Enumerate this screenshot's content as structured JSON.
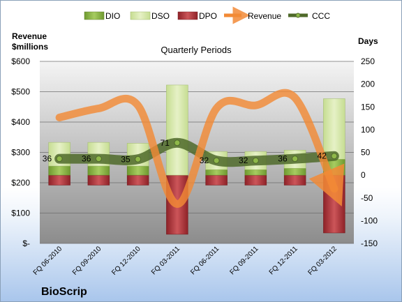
{
  "chart_data": {
    "type": "bar",
    "title": "Quarterly Periods",
    "company": "BioScrip",
    "left_axis": {
      "title_lines": [
        "Revenue",
        "$millions"
      ],
      "ticks": [
        "$-",
        "$100",
        "$200",
        "$300",
        "$400",
        "$500",
        "$600"
      ],
      "ylim": [
        0,
        600
      ]
    },
    "right_axis": {
      "title": "Days",
      "ticks": [
        "-150",
        "-100",
        "-50",
        "0",
        "50",
        "100",
        "150",
        "200",
        "250"
      ],
      "ylim": [
        -150,
        250
      ]
    },
    "categories": [
      "FQ 06-2010",
      "FQ 09-2010",
      "FQ 12-2010",
      "FQ 03-2011",
      "FQ 06-2011",
      "FQ 09-2011",
      "FQ 12-2011",
      "FQ 03-2012"
    ],
    "series": [
      {
        "name": "DIO",
        "axis": "days",
        "color": "#8fb84a",
        "values": [
          20,
          20,
          20,
          0,
          12,
          12,
          15,
          35
        ]
      },
      {
        "name": "DSO",
        "axis": "days",
        "color": "#d5e6a8",
        "values": [
          52,
          52,
          50,
          198,
          40,
          40,
          40,
          133
        ]
      },
      {
        "name": "DPO",
        "axis": "days",
        "color": "#b8343a",
        "values": [
          -22,
          -22,
          -22,
          -130,
          -22,
          -22,
          -22,
          -127
        ]
      },
      {
        "name": "Revenue",
        "axis": "revenue",
        "color": "#f28a36",
        "values": [
          415,
          445,
          455,
          130,
          445,
          455,
          480,
          180
        ]
      },
      {
        "name": "CCC",
        "axis": "days",
        "color": "#4f6a2a",
        "values": [
          36,
          36,
          35,
          71,
          32,
          32,
          36,
          42
        ]
      }
    ],
    "ccc_labels": [
      "36",
      "36",
      "35",
      "71",
      "32",
      "32",
      "36",
      "42"
    ],
    "legend": [
      "DIO",
      "DSO",
      "DPO",
      "Revenue",
      "CCC"
    ],
    "legend_position": "top",
    "grid": true
  }
}
